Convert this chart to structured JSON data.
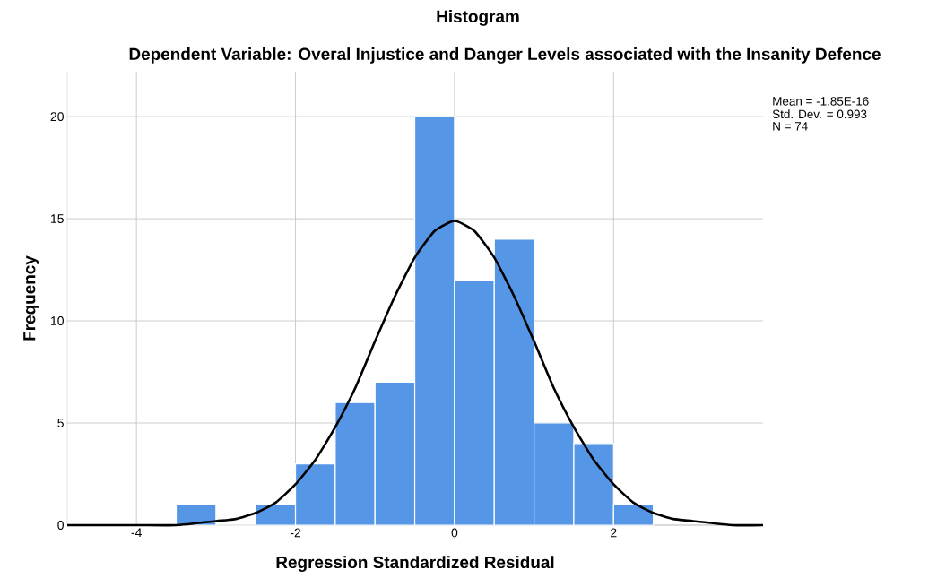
{
  "chart_data": {
    "type": "histogram",
    "title": "Histogram",
    "subtitle": "Dependent Variable: Overal Injustice and Danger Levels associated with the Insanity Defence",
    "xlabel": "Regression Standardized Residual",
    "ylabel": "Frequency",
    "bins": [
      -3.5,
      -3.0,
      -2.5,
      -2.0,
      -1.5,
      -1.0,
      -0.5,
      0.0,
      0.5,
      1.0,
      1.5,
      2.0,
      2.5
    ],
    "values": [
      1,
      0,
      1,
      3,
      6,
      7,
      20,
      12,
      14,
      5,
      4,
      1
    ],
    "color": "#5596e6",
    "series": [
      {
        "type": "line",
        "color": "#000000",
        "x": [
          -4.87,
          -4.0,
          -3.5,
          -3.0,
          -2.75,
          -2.5,
          -2.25,
          -2.0,
          -1.75,
          -1.5,
          -1.25,
          -1.0,
          -0.75,
          -0.5,
          -0.25,
          0.0,
          0.25,
          0.5,
          0.75,
          1.0,
          1.25,
          1.5,
          1.75,
          2.0,
          2.25,
          2.5,
          2.75,
          3.0,
          3.5,
          3.88
        ],
        "values": [
          0.0,
          0.0,
          0.0,
          0.2,
          0.3,
          0.6,
          1.1,
          2.0,
          3.2,
          4.8,
          6.7,
          9.0,
          11.2,
          13.1,
          14.4,
          14.9,
          14.4,
          13.1,
          11.2,
          9.0,
          6.7,
          4.8,
          3.2,
          2.0,
          1.1,
          0.6,
          0.3,
          0.2,
          0.0,
          0.0
        ]
      }
    ],
    "xlim": [
      -4.87,
      3.88
    ],
    "ylim": [
      0,
      22.2
    ],
    "xticks": [
      -4,
      -2,
      0,
      2
    ],
    "yticks": [
      0,
      5,
      10,
      15,
      20
    ],
    "grid": true,
    "annotations": [
      "Mean = -1.85E-16",
      "Std. Dev. = 0.993",
      "N = 74"
    ]
  }
}
